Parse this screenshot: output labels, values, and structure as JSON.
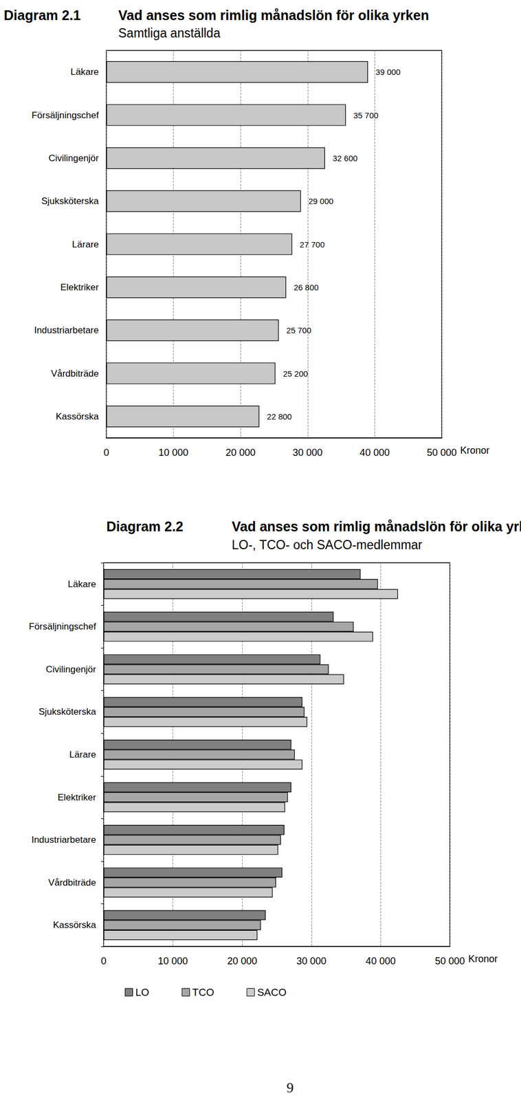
{
  "page_number": "9",
  "chart_data": [
    {
      "type": "bar",
      "orientation": "horizontal",
      "figure": "Diagram 2.1",
      "title": "Vad anses som rimlig månadslön för olika yrken",
      "subtitle": "Samtliga anställda",
      "x_label": "Kronor",
      "categories": [
        "Läkare",
        "Försäljningschef",
        "Civilingenjör",
        "Sjuksköterska",
        "Lärare",
        "Elektriker",
        "Industriarbetare",
        "Vårdbiträde",
        "Kassörska"
      ],
      "values": [
        39000,
        35700,
        32600,
        29000,
        27700,
        26800,
        25700,
        25200,
        22800
      ],
      "value_labels": [
        "39 000",
        "35 700",
        "32 600",
        "29 000",
        "27 700",
        "26 800",
        "25 700",
        "25 200",
        "22 800"
      ],
      "color": "#c8c8c8",
      "xlim": [
        0,
        50000
      ],
      "xticks": [
        0,
        {
          "value": 10000,
          "label": "10 000"
        },
        {
          "value": 20000,
          "label": "20 000"
        },
        {
          "value": 30000,
          "label": "30 000"
        },
        {
          "value": 40000,
          "label": "40 000"
        },
        {
          "value": 50000,
          "label": "50 000"
        }
      ],
      "grid": true,
      "data_labels": true
    },
    {
      "type": "bar",
      "orientation": "horizontal",
      "figure": "Diagram 2.2",
      "title": "Vad anses som rimlig månadslön för olika yrken",
      "subtitle": "LO-, TCO- och SACO-medlemmar",
      "x_label": "Kronor",
      "categories": [
        "Läkare",
        "Försäljningschef",
        "Civilingenjör",
        "Sjuksköterska",
        "Lärare",
        "Elektriker",
        "Industriarbetare",
        "Vårdbiträde",
        "Kassörska"
      ],
      "series": [
        {
          "name": "LO",
          "color": "#808080",
          "values": [
            37100,
            33200,
            31300,
            28700,
            27100,
            27100,
            26100,
            25800,
            23400
          ]
        },
        {
          "name": "TCO",
          "color": "#a6a6a6",
          "values": [
            39600,
            36100,
            32500,
            29000,
            27600,
            26600,
            25600,
            24900,
            22700
          ]
        },
        {
          "name": "SACO",
          "color": "#cccccc",
          "values": [
            42500,
            38900,
            34700,
            29400,
            28700,
            26200,
            25200,
            24400,
            22200
          ]
        }
      ],
      "xlim": [
        0,
        50000
      ],
      "xticks": [
        0,
        {
          "value": 10000,
          "label": "10 000"
        },
        {
          "value": 20000,
          "label": "20 000"
        },
        {
          "value": 30000,
          "label": "30 000"
        },
        {
          "value": 40000,
          "label": "40 000"
        },
        {
          "value": 50000,
          "label": "50 000"
        }
      ],
      "grid": true,
      "legend": "bottom"
    }
  ]
}
